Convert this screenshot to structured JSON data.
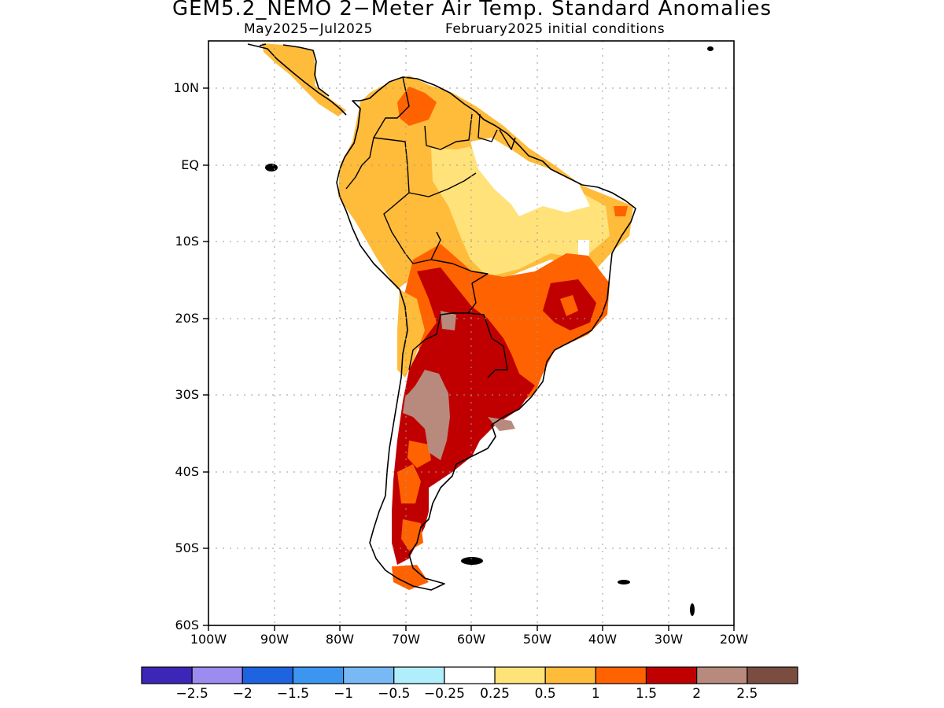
{
  "title": "GEM5.2_NEMO 2−Meter Air Temp. Standard Anomalies",
  "subtitle_left": "May2025−Jul2025",
  "subtitle_right": "February2025 initial conditions",
  "lat_labels": [
    "10N",
    "EQ",
    "10S",
    "20S",
    "30S",
    "40S",
    "50S",
    "60S"
  ],
  "lon_labels": [
    "100W",
    "90W",
    "80W",
    "70W",
    "60W",
    "50W",
    "40W",
    "30W",
    "20W"
  ],
  "colorbar": {
    "colors": [
      "#3b26b8",
      "#9c8cf0",
      "#1e63e0",
      "#3c96f0",
      "#78b8f5",
      "#b0eefb",
      "#ffffff",
      "#ffe27a",
      "#ffbb3a",
      "#ff6200",
      "#c00000",
      "#b88a7d",
      "#7b4d40"
    ],
    "labels": [
      "−2.5",
      "−2",
      "−1.5",
      "−1",
      "−0.5",
      "−0.25",
      "0.25",
      "0.5",
      "1",
      "1.5",
      "2",
      "2.5"
    ]
  }
}
